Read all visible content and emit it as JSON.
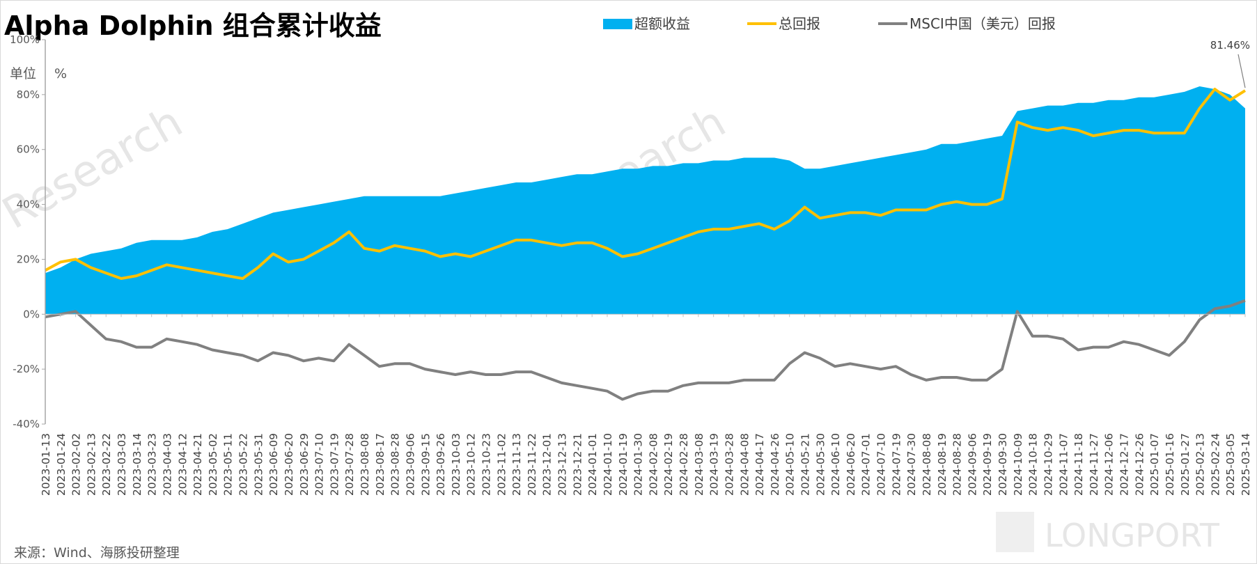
{
  "chart_data": {
    "type": "area",
    "title": "Alpha Dolphin 组合累计收益",
    "unit_label": "单位",
    "unit_symbol": "%",
    "source": "来源：Wind、海豚投研整理",
    "watermark_brand": "LONGPORT",
    "watermark_text": "Research",
    "legend_position": "top-right",
    "grid": false,
    "ylim": [
      -40,
      100
    ],
    "yticks": [
      "100%",
      "80%",
      "60%",
      "40%",
      "20%",
      "0%",
      "-20%",
      "-40%"
    ],
    "ytick_values": [
      100,
      80,
      60,
      40,
      20,
      0,
      -20,
      -40
    ],
    "x_labels": [
      "2023-01-13",
      "2023-01-24",
      "2023-02-02",
      "2023-02-13",
      "2023-02-22",
      "2023-03-03",
      "2023-03-14",
      "2023-03-23",
      "2023-04-03",
      "2023-04-12",
      "2023-04-21",
      "2023-05-02",
      "2023-05-11",
      "2023-05-22",
      "2023-05-31",
      "2023-06-09",
      "2023-06-20",
      "2023-06-29",
      "2023-07-10",
      "2023-07-19",
      "2023-07-28",
      "2023-08-08",
      "2023-08-17",
      "2023-08-28",
      "2023-09-06",
      "2023-09-15",
      "2023-09-26",
      "2023-10-03",
      "2023-10-12",
      "2023-10-23",
      "2023-11-02",
      "2023-11-13",
      "2023-11-22",
      "2023-12-01",
      "2023-12-13",
      "2023-12-21",
      "2024-01-01",
      "2024-01-10",
      "2024-01-19",
      "2024-01-30",
      "2024-02-08",
      "2024-02-19",
      "2024-02-28",
      "2024-03-08",
      "2024-03-19",
      "2024-03-28",
      "2024-04-08",
      "2024-04-17",
      "2024-04-26",
      "2024-05-10",
      "2024-05-21",
      "2024-05-30",
      "2024-06-10",
      "2024-06-20",
      "2024-07-01",
      "2024-07-10",
      "2024-07-19",
      "2024-07-30",
      "2024-08-08",
      "2024-08-19",
      "2024-08-28",
      "2024-09-06",
      "2024-09-19",
      "2024-09-30",
      "2024-10-09",
      "2024-10-18",
      "2024-10-29",
      "2024-11-07",
      "2024-11-18",
      "2024-11-27",
      "2024-12-06",
      "2024-12-17",
      "2024-12-26",
      "2025-01-07",
      "2025-01-16",
      "2025-01-27",
      "2025-02-13",
      "2025-02-24",
      "2025-03-05",
      "2025-03-14"
    ],
    "series": [
      {
        "name": "超额收益",
        "type": "area",
        "color": "#00b0f0",
        "values": [
          15,
          17,
          20,
          22,
          23,
          24,
          26,
          27,
          27,
          27,
          28,
          30,
          31,
          33,
          35,
          37,
          38,
          39,
          40,
          41,
          42,
          43,
          43,
          43,
          43,
          43,
          43,
          44,
          45,
          46,
          47,
          48,
          48,
          49,
          50,
          51,
          51,
          52,
          53,
          53,
          54,
          54,
          55,
          55,
          56,
          56,
          57,
          57,
          57,
          56,
          53,
          53,
          54,
          55,
          56,
          57,
          58,
          59,
          60,
          62,
          62,
          63,
          64,
          65,
          74,
          75,
          76,
          76,
          77,
          77,
          78,
          78,
          79,
          79,
          80,
          81,
          83,
          82,
          80,
          75
        ]
      },
      {
        "name": "总回报",
        "type": "line",
        "color": "#ffc000",
        "values": [
          16,
          19,
          20,
          17,
          15,
          13,
          14,
          16,
          18,
          17,
          16,
          15,
          14,
          13,
          17,
          22,
          19,
          20,
          23,
          26,
          30,
          24,
          23,
          25,
          24,
          23,
          21,
          22,
          21,
          23,
          25,
          27,
          27,
          26,
          25,
          26,
          26,
          24,
          21,
          22,
          24,
          26,
          28,
          30,
          31,
          31,
          32,
          33,
          31,
          34,
          39,
          35,
          36,
          37,
          37,
          36,
          38,
          38,
          38,
          40,
          41,
          40,
          40,
          42,
          70,
          68,
          67,
          68,
          67,
          65,
          66,
          67,
          67,
          66,
          66,
          66,
          75,
          82,
          78,
          81.46
        ]
      },
      {
        "name": "MSCI中国（美元）回报",
        "type": "line",
        "color": "#808080",
        "values": [
          -1,
          0,
          1,
          -4,
          -9,
          -10,
          -12,
          -12,
          -9,
          -10,
          -11,
          -13,
          -14,
          -15,
          -17,
          -14,
          -15,
          -17,
          -16,
          -17,
          -11,
          -15,
          -19,
          -18,
          -18,
          -20,
          -21,
          -22,
          -21,
          -22,
          -22,
          -21,
          -21,
          -23,
          -25,
          -26,
          -27,
          -28,
          -31,
          -29,
          -28,
          -28,
          -26,
          -25,
          -25,
          -25,
          -24,
          -24,
          -24,
          -18,
          -14,
          -16,
          -19,
          -18,
          -19,
          -20,
          -19,
          -22,
          -24,
          -23,
          -23,
          -24,
          -24,
          -20,
          1,
          -8,
          -8,
          -9,
          -13,
          -12,
          -12,
          -10,
          -11,
          -13,
          -15,
          -10,
          -2,
          2,
          3,
          5
        ]
      }
    ],
    "annotations": [
      {
        "text": "81.46%",
        "series": "总回报",
        "x": "2025-03-14",
        "y": 81.46
      }
    ]
  }
}
